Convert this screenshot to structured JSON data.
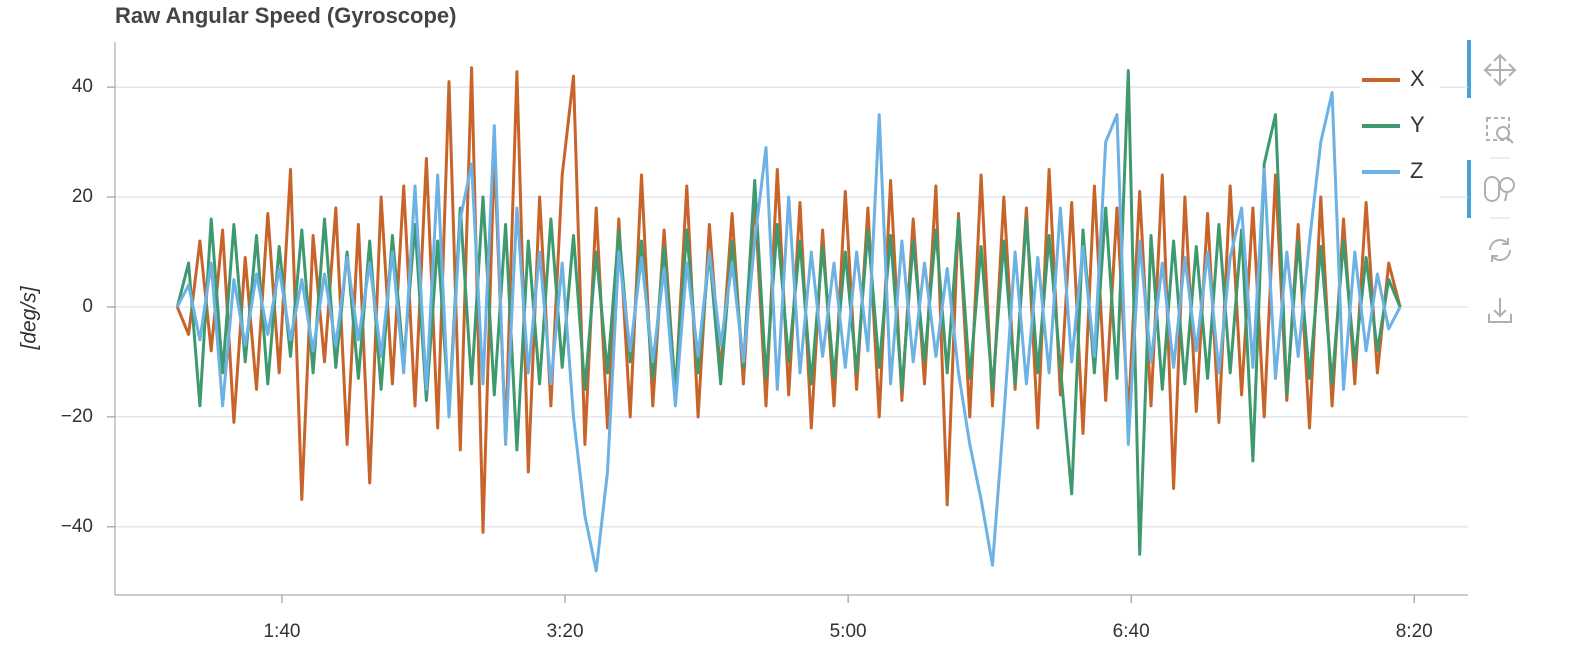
{
  "chart_data": {
    "type": "line",
    "title": "Raw Angular Speed (Gyroscope)",
    "y_label": "[deg/s]",
    "x": [
      63,
      67,
      71,
      75,
      79,
      83,
      87,
      91,
      95,
      99,
      103,
      107,
      111,
      115,
      119,
      123,
      127,
      131,
      135,
      139,
      143,
      147,
      151,
      155,
      159,
      163,
      167,
      171,
      175,
      179,
      183,
      187,
      191,
      195,
      199,
      203,
      207,
      211,
      215,
      219,
      223,
      227,
      231,
      235,
      239,
      243,
      247,
      251,
      255,
      259,
      263,
      267,
      271,
      275,
      279,
      283,
      287,
      291,
      295,
      299,
      303,
      307,
      311,
      315,
      319,
      323,
      327,
      331,
      335,
      339,
      343,
      347,
      351,
      355,
      359,
      363,
      367,
      371,
      375,
      379,
      383,
      387,
      391,
      395,
      399,
      403,
      407,
      411,
      415,
      419,
      423,
      427,
      431,
      435,
      439,
      443,
      447,
      451,
      455,
      459,
      463,
      467,
      471,
      475,
      479,
      483,
      487,
      491,
      495
    ],
    "series": [
      {
        "name": "X",
        "color": "#c8642a",
        "values": [
          0,
          -5,
          12,
          -8,
          14,
          -21,
          9,
          -15,
          17,
          -12,
          25,
          -35,
          13,
          -10,
          18,
          -25,
          15,
          -32,
          20,
          -14,
          22,
          -18,
          27,
          -22,
          41,
          -26,
          43.5,
          -41,
          28,
          -24,
          42.8,
          -30,
          20,
          -18,
          24,
          42,
          -25,
          18,
          -22,
          16,
          -20,
          24,
          -18,
          14,
          -16,
          22,
          -20,
          15,
          -12,
          17,
          -14,
          20,
          -18,
          25,
          -16,
          19,
          -22,
          14,
          -18,
          21,
          -15,
          18,
          -20,
          23,
          -17,
          16,
          -14,
          22,
          -36,
          17,
          -20,
          24,
          -18,
          20,
          -15,
          18,
          -22,
          25,
          -16,
          19,
          -23,
          22,
          -17,
          18,
          -20,
          21,
          -18,
          24,
          -33,
          20,
          -19,
          17,
          -21,
          22,
          -16,
          18,
          -20,
          24,
          -17,
          15,
          -22,
          20,
          -18,
          16,
          -14,
          19,
          -12,
          8,
          0
        ]
      },
      {
        "name": "Y",
        "color": "#3e9a6e",
        "values": [
          0,
          8,
          -18,
          16,
          -12,
          15,
          -10,
          13,
          -14,
          11,
          -9,
          14,
          -12,
          16,
          -11,
          10,
          -13,
          12,
          -15,
          13,
          -10,
          15,
          -17,
          12,
          -19,
          18,
          -14,
          20,
          -16,
          15,
          -26,
          12,
          -14,
          16,
          -11,
          13,
          -15,
          10,
          -12,
          14,
          -10,
          12,
          -13,
          11,
          -15,
          14,
          -12,
          10,
          -14,
          12,
          -11,
          23,
          -13,
          15,
          -10,
          12,
          -14,
          11,
          -13,
          10,
          -12,
          14,
          -11,
          13,
          -15,
          12,
          -10,
          14,
          -12,
          16,
          -13,
          11,
          -15,
          12,
          -14,
          16,
          -12,
          13,
          -11,
          -34,
          14,
          -12,
          18,
          -13,
          43,
          -45,
          13,
          -15,
          12,
          -14,
          11,
          -13,
          15,
          -12,
          14,
          -28,
          26,
          35,
          -16,
          12,
          -13,
          11,
          -14,
          12,
          -10,
          9,
          -8,
          5,
          0
        ]
      },
      {
        "name": "Z",
        "color": "#6cb2e4",
        "values": [
          0,
          4,
          -6,
          8,
          -18,
          5,
          -7,
          6,
          -5,
          7,
          -6,
          5,
          -8,
          6,
          -7,
          9,
          -6,
          8,
          -9,
          10,
          -12,
          22,
          -15,
          24,
          -20,
          16,
          26,
          -14,
          33,
          -25,
          18,
          -12,
          10,
          -14,
          8,
          -20,
          -38,
          -48,
          -30,
          10,
          -8,
          9,
          -10,
          7,
          -18,
          8,
          -9,
          10,
          -7,
          8,
          -10,
          12,
          29,
          -15,
          20,
          -12,
          10,
          -9,
          8,
          -11,
          10,
          -8,
          35,
          -14,
          12,
          -10,
          8,
          -9,
          7,
          -12,
          -25,
          -35,
          -47,
          -20,
          10,
          -14,
          9,
          -12,
          18,
          -10,
          11,
          -9,
          30,
          35,
          -25,
          12,
          -10,
          8,
          -11,
          9,
          -8,
          10,
          -12,
          9,
          18,
          -11,
          25,
          -13,
          10,
          -9,
          12,
          30,
          39,
          -15,
          10,
          -8,
          6,
          -4,
          0
        ]
      }
    ],
    "xlim": [
      41,
      519
    ],
    "xticks": [
      {
        "value": 100,
        "label": "1:40"
      },
      {
        "value": 200,
        "label": "3:20"
      },
      {
        "value": 300,
        "label": "5:00"
      },
      {
        "value": 400,
        "label": "6:40"
      },
      {
        "value": 500,
        "label": "8:20"
      }
    ],
    "ylim": [
      -52.4,
      48.2
    ],
    "yticks": [
      {
        "value": -40,
        "label": "−40"
      },
      {
        "value": -20,
        "label": "−20"
      },
      0,
      20,
      40
    ],
    "grid": true,
    "legend": "top-right"
  }
}
